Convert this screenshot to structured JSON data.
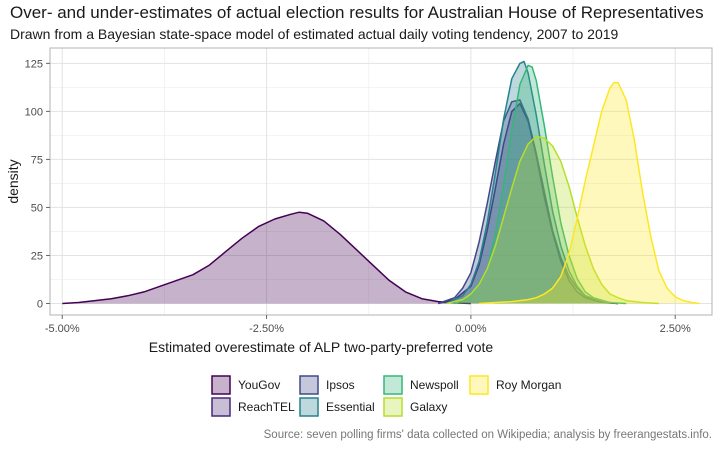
{
  "chart_data": {
    "type": "area",
    "title": "Over- and under-estimates of actual election results for Australian House of Representatives",
    "subtitle": "Drawn from a Bayesian state-space model of estimated actual daily voting tendency, 2007 to 2019",
    "caption": "Source: seven polling firms' data collected on Wikipedia; analysis by freerangestats.info.",
    "xlabel": "Estimated overestimate of ALP two-party-preferred vote",
    "ylabel": "density",
    "xlim": [
      -0.0515,
      0.0295
    ],
    "ylim": [
      -6,
      133
    ],
    "x_ticks": [
      -0.05,
      -0.025,
      0,
      0.025
    ],
    "x_tick_labels": [
      "-5.00%",
      "-2.50%",
      "0.00%",
      "2.50%"
    ],
    "y_ticks": [
      0,
      25,
      50,
      75,
      100,
      125
    ],
    "y_tick_labels": [
      "0",
      "25",
      "50",
      "75",
      "100",
      "125"
    ],
    "grid": true,
    "legend_position": "bottom",
    "series": [
      {
        "name": "YouGov",
        "color": "#440154",
        "x": [
          -0.05,
          -0.048,
          -0.046,
          -0.044,
          -0.042,
          -0.04,
          -0.038,
          -0.036,
          -0.034,
          -0.032,
          -0.03,
          -0.028,
          -0.026,
          -0.024,
          -0.022,
          -0.021,
          -0.02,
          -0.018,
          -0.016,
          -0.014,
          -0.012,
          -0.01,
          -0.008,
          -0.006,
          -0.004,
          -0.002,
          0.0
        ],
        "y": [
          0,
          0.5,
          1.5,
          2.5,
          4,
          6,
          9,
          12,
          15,
          20,
          27,
          34,
          40,
          44,
          46.5,
          47.5,
          47,
          43,
          36,
          28,
          20,
          12,
          6,
          2.5,
          1,
          0.3,
          0
        ]
      },
      {
        "name": "ReachTEL",
        "color": "#482878",
        "x": [
          -0.004,
          -0.002,
          0.0,
          0.001,
          0.002,
          0.003,
          0.004,
          0.005,
          0.006,
          0.007,
          0.008,
          0.009,
          0.01,
          0.011,
          0.012,
          0.013,
          0.014,
          0.016,
          0.018
        ],
        "y": [
          0,
          2,
          9,
          20,
          38,
          60,
          83,
          100,
          104,
          95,
          77,
          55,
          37,
          22,
          12,
          6,
          3,
          0.5,
          0
        ]
      },
      {
        "name": "Ipsos",
        "color": "#3E4A89",
        "x": [
          -0.004,
          -0.002,
          -0.001,
          0.0,
          0.001,
          0.002,
          0.003,
          0.004,
          0.005,
          0.006,
          0.007,
          0.008,
          0.009,
          0.01,
          0.011,
          0.012,
          0.013,
          0.014,
          0.016,
          0.018
        ],
        "y": [
          0,
          3,
          8,
          16,
          32,
          52,
          74,
          95,
          105,
          106,
          96,
          78,
          58,
          38,
          24,
          14,
          8,
          4,
          1,
          0
        ]
      },
      {
        "name": "Essential",
        "color": "#26828E",
        "x": [
          -0.003,
          -0.001,
          0.0,
          0.001,
          0.002,
          0.003,
          0.004,
          0.005,
          0.006,
          0.0065,
          0.007,
          0.008,
          0.009,
          0.01,
          0.011,
          0.012,
          0.013,
          0.014,
          0.016,
          0.018
        ],
        "y": [
          0,
          4,
          10,
          22,
          42,
          68,
          96,
          117,
          125,
          126,
          120,
          98,
          72,
          48,
          30,
          17,
          9,
          4,
          1,
          0
        ]
      },
      {
        "name": "Newspoll",
        "color": "#35B779",
        "x": [
          -0.002,
          0.0,
          0.002,
          0.003,
          0.004,
          0.005,
          0.006,
          0.007,
          0.0075,
          0.008,
          0.009,
          0.01,
          0.011,
          0.012,
          0.013,
          0.014,
          0.015,
          0.017,
          0.019
        ],
        "y": [
          0,
          3,
          18,
          36,
          62,
          90,
          114,
          124,
          123,
          116,
          92,
          66,
          42,
          25,
          13,
          6,
          3,
          0.5,
          0
        ]
      },
      {
        "name": "Galaxy",
        "color": "#B5DE2B",
        "x": [
          -0.003,
          -0.001,
          0.0,
          0.001,
          0.002,
          0.003,
          0.004,
          0.005,
          0.006,
          0.007,
          0.008,
          0.009,
          0.01,
          0.011,
          0.012,
          0.013,
          0.014,
          0.015,
          0.016,
          0.017,
          0.018,
          0.019,
          0.02,
          0.021,
          0.023
        ],
        "y": [
          0,
          2,
          5,
          10,
          18,
          30,
          45,
          60,
          74,
          83,
          87,
          86,
          82,
          74,
          61,
          45,
          30,
          18,
          10,
          5,
          3,
          1.5,
          1,
          0.5,
          0
        ]
      },
      {
        "name": "Roy Morgan",
        "color": "#FDE725",
        "x": [
          0.001,
          0.003,
          0.005,
          0.007,
          0.008,
          0.009,
          0.01,
          0.011,
          0.012,
          0.013,
          0.014,
          0.015,
          0.016,
          0.017,
          0.0175,
          0.018,
          0.019,
          0.02,
          0.021,
          0.022,
          0.023,
          0.024,
          0.025,
          0.026,
          0.027,
          0.028
        ],
        "y": [
          0,
          0.5,
          1,
          2,
          3,
          5,
          8,
          14,
          26,
          44,
          64,
          82,
          100,
          112,
          115,
          115,
          106,
          85,
          58,
          35,
          17,
          8,
          3.5,
          1.5,
          0.5,
          0
        ]
      }
    ]
  }
}
